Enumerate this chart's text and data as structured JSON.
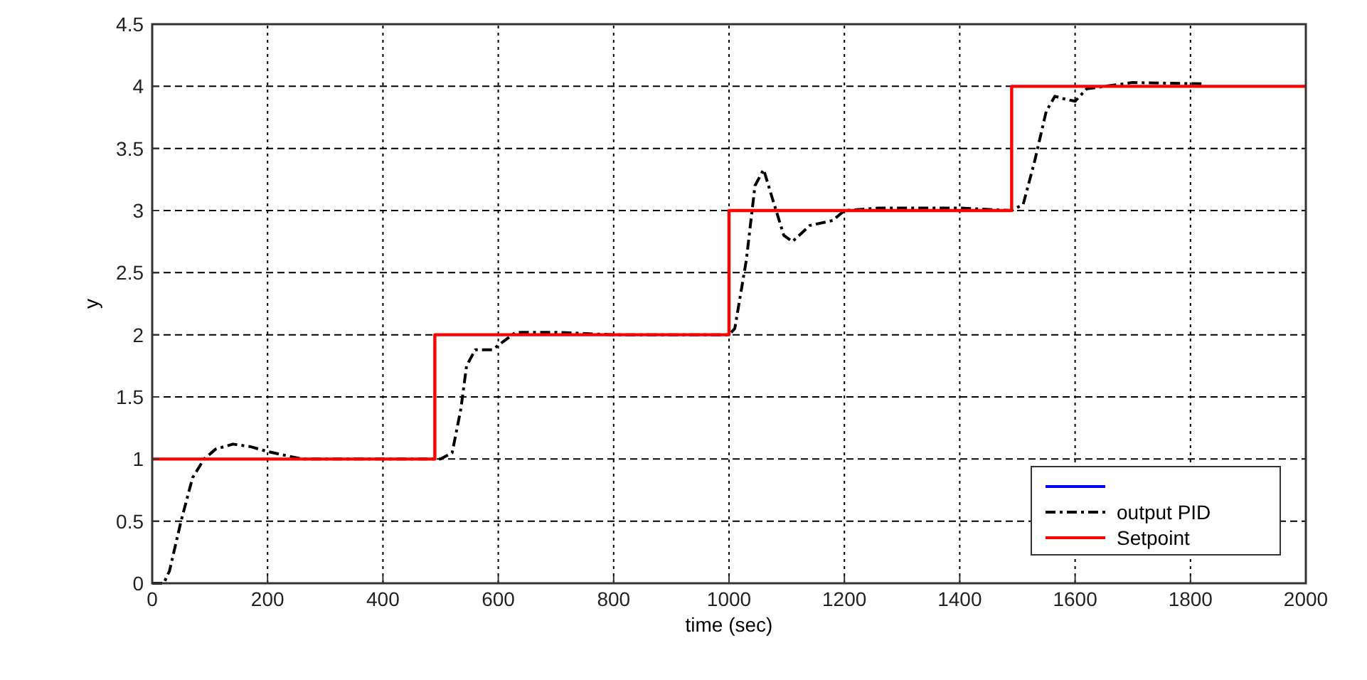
{
  "chart_data": {
    "type": "line",
    "xlabel": "time (sec)",
    "ylabel": "y",
    "xlim": [
      0,
      2000
    ],
    "ylim": [
      0,
      4.5
    ],
    "xticks": [
      0,
      200,
      400,
      600,
      800,
      1000,
      1200,
      1400,
      1600,
      1800,
      2000
    ],
    "yticks": [
      0,
      0.5,
      1,
      1.5,
      2,
      2.5,
      3,
      3.5,
      4,
      4.5
    ],
    "grid": true,
    "legend": "bottom right",
    "series": [
      {
        "color": "#0000ff",
        "line_style": "solid",
        "values": [
          null
        ]
      },
      {
        "name": "output PID",
        "color": "#000000",
        "line_style": "dashed",
        "x": [
          0,
          20,
          30,
          50,
          70,
          90,
          110,
          140,
          170,
          200,
          240,
          260,
          460,
          500,
          520,
          535,
          545,
          560,
          590,
          610,
          630,
          700,
          800,
          1000,
          1010,
          1030,
          1045,
          1060,
          1075,
          1095,
          1110,
          1140,
          1180,
          1200,
          1260,
          1400,
          1490,
          1510,
          1530,
          1550,
          1565,
          1580,
          1600,
          1620,
          1700,
          1820
        ],
        "values": [
          0,
          0,
          0.1,
          0.5,
          0.85,
          1.0,
          1.08,
          1.12,
          1.1,
          1.06,
          1.02,
          1.0,
          1.0,
          1.0,
          1.05,
          1.4,
          1.75,
          1.88,
          1.88,
          1.95,
          2.02,
          2.02,
          2.0,
          2.0,
          2.05,
          2.6,
          3.2,
          3.33,
          3.1,
          2.8,
          2.75,
          2.88,
          2.92,
          3.0,
          3.02,
          3.02,
          3.0,
          3.05,
          3.4,
          3.8,
          3.92,
          3.9,
          3.88,
          3.98,
          4.03,
          4.02
        ]
      },
      {
        "name": "Setpoint",
        "color": "#ff0000",
        "line_style": "solid",
        "x": [
          0,
          490,
          490,
          1000,
          1000,
          1490,
          1490,
          2000
        ],
        "values": [
          1,
          1,
          2,
          2,
          3,
          3,
          4,
          4
        ]
      }
    ]
  }
}
